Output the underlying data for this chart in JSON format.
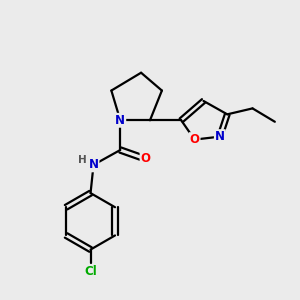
{
  "bg_color": "#ebebeb",
  "bond_color": "#000000",
  "bond_width": 1.6,
  "atom_colors": {
    "N": "#0000cc",
    "O": "#ff0000",
    "Cl": "#00aa00",
    "C": "#000000",
    "H": "#555555"
  },
  "font_size": 8.5,
  "fig_size": [
    3.0,
    3.0
  ],
  "dpi": 100
}
